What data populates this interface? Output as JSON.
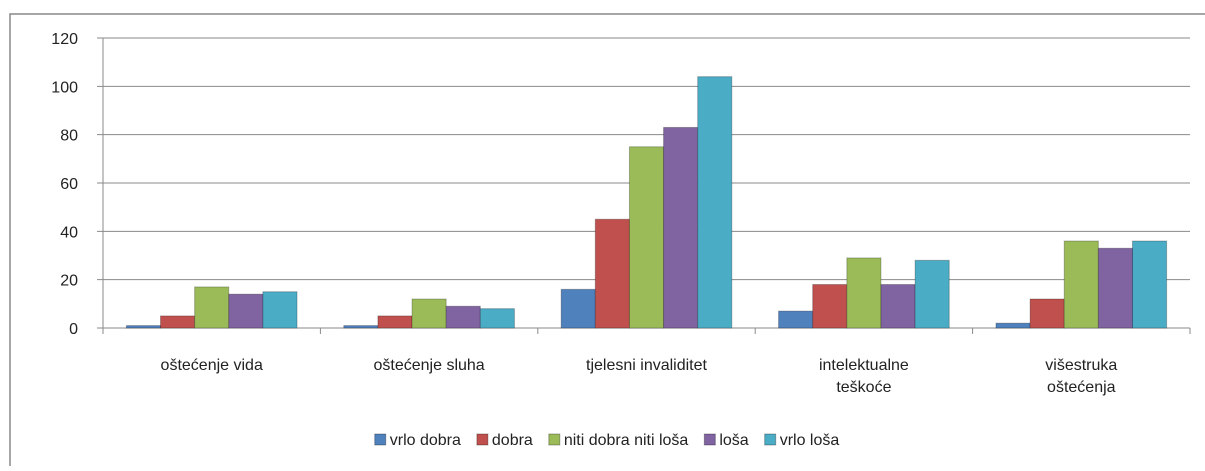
{
  "chart_data": {
    "type": "bar",
    "categories": [
      "oštećenje vida",
      "oštećenje sluha",
      "tjelesni invaliditet",
      "intelektualne\nteškoće",
      "višestruka\noštećenja"
    ],
    "series": [
      {
        "name": "vrlo dobra",
        "color": "#4f81bd",
        "values": [
          1,
          1,
          16,
          7,
          2
        ]
      },
      {
        "name": "dobra",
        "color": "#c0504d",
        "values": [
          5,
          5,
          45,
          18,
          12
        ]
      },
      {
        "name": "niti dobra niti loša",
        "color": "#9bbb59",
        "values": [
          17,
          12,
          75,
          29,
          36
        ]
      },
      {
        "name": "loša",
        "color": "#8064a2",
        "values": [
          14,
          9,
          83,
          18,
          33
        ]
      },
      {
        "name": "vrlo loša",
        "color": "#4bacc6",
        "values": [
          15,
          8,
          104,
          28,
          36
        ]
      }
    ],
    "ylim": [
      0,
      120
    ],
    "yticks": [
      0,
      20,
      40,
      60,
      80,
      100,
      120
    ],
    "grid": true,
    "legend": "bottom"
  }
}
